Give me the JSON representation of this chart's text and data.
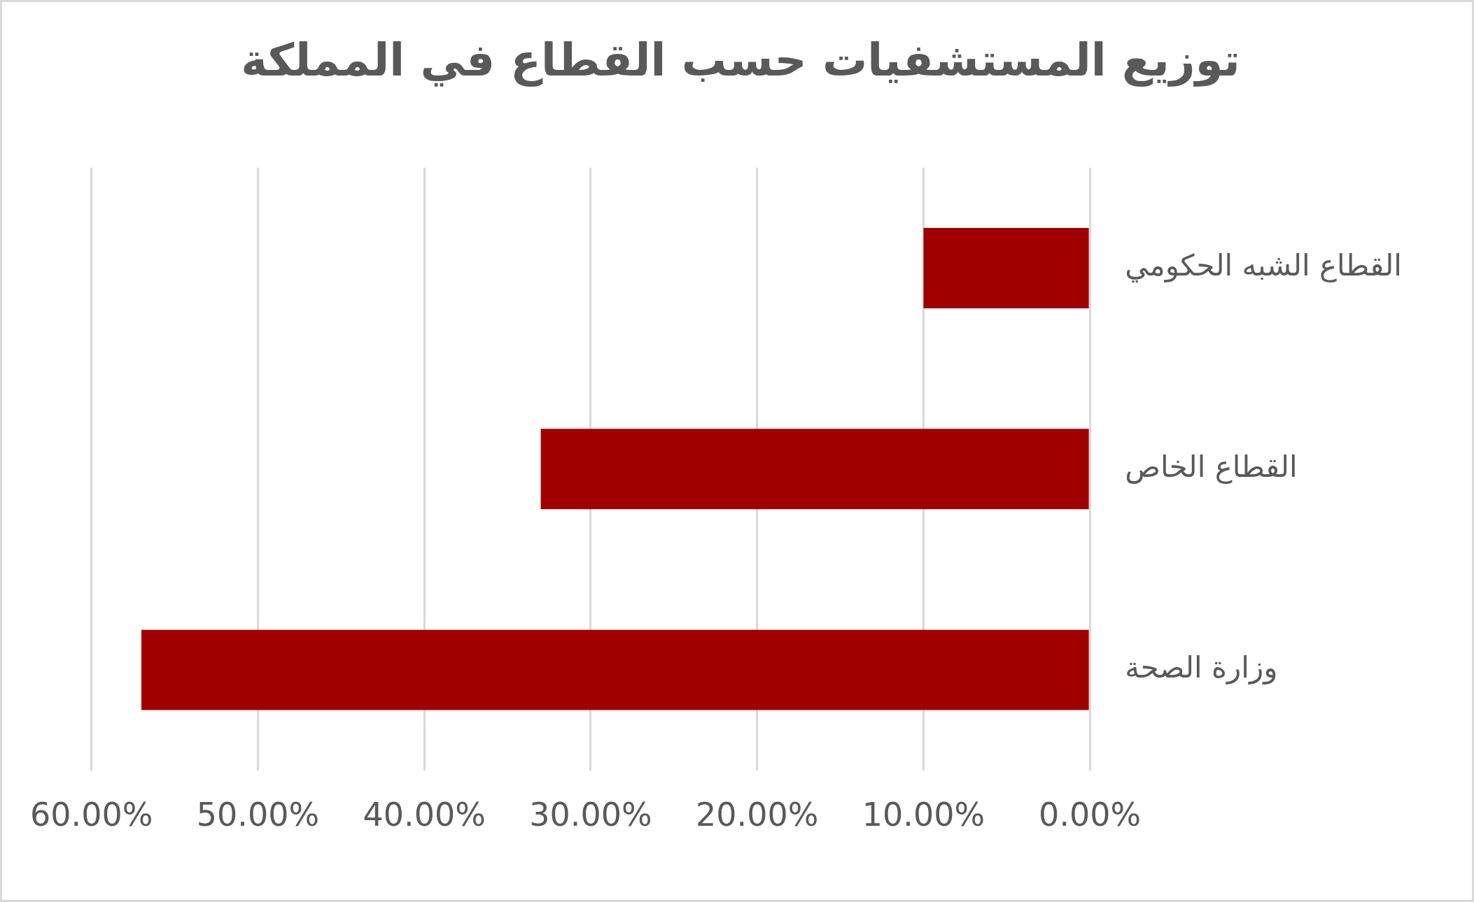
{
  "chart_data": {
    "type": "bar",
    "orientation": "horizontal",
    "title": "توزيع المستشفيات حسب القطاع في المملكة",
    "categories": [
      "القطاع الشبه الحكومي",
      "القطاع الخاص",
      "وزارة الصحة"
    ],
    "values": [
      10,
      33,
      57
    ],
    "color": "#a00000",
    "xlim": [
      60,
      0
    ],
    "xticks": [
      {
        "value": 60,
        "label": "60.00%"
      },
      {
        "value": 50,
        "label": "50.00%"
      },
      {
        "value": 40,
        "label": "40.00%"
      },
      {
        "value": 30,
        "label": "30.00%"
      },
      {
        "value": 20,
        "label": "20.00%"
      },
      {
        "value": 10,
        "label": "10.00%"
      },
      {
        "value": 0,
        "label": "0.00%"
      }
    ],
    "grid": "x",
    "legend": false
  }
}
